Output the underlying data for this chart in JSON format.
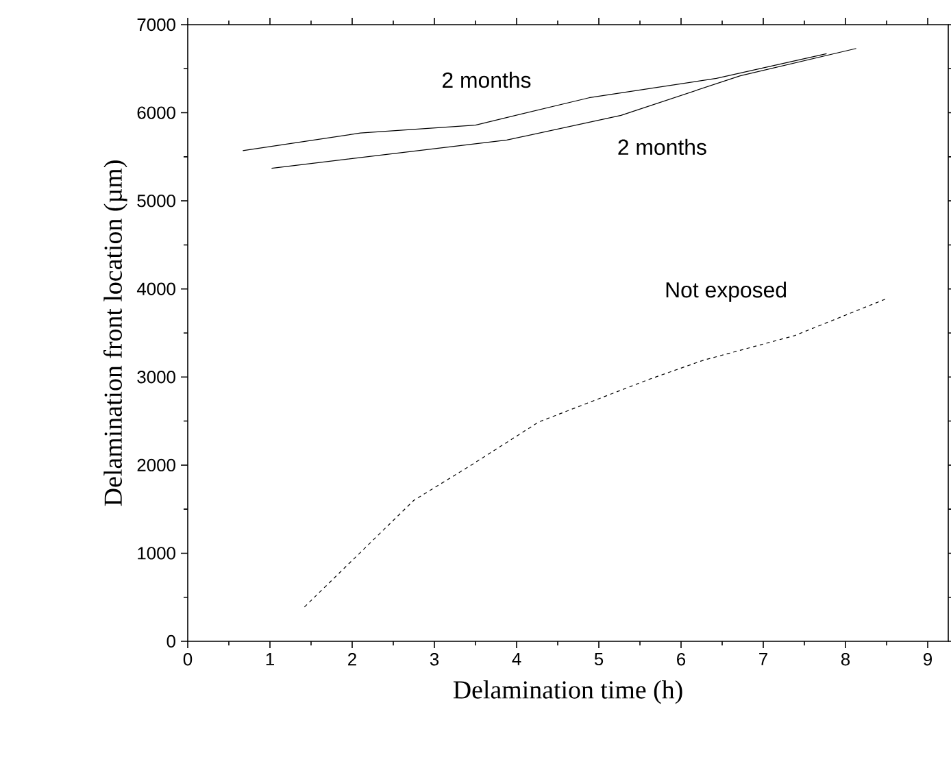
{
  "chart_data": {
    "type": "line",
    "xlabel": "Delamination time (h)",
    "ylabel": "Delamination front location (µm)",
    "xlim": [
      0,
      9.25
    ],
    "ylim": [
      0,
      7000
    ],
    "xticks": [
      0,
      1,
      2,
      3,
      4,
      5,
      6,
      7,
      8,
      9
    ],
    "yticks": [
      0,
      1000,
      2000,
      3000,
      4000,
      5000,
      6000,
      7000
    ],
    "grid": false,
    "marker": "none",
    "series": [
      {
        "name": "2 months",
        "color": "#000000",
        "line_style": "solid",
        "x": [
          0.67,
          2.1,
          3.5,
          4.88,
          6.43,
          7.77
        ],
        "values": [
          5570,
          5770,
          5860,
          6170,
          6390,
          6670
        ]
      },
      {
        "name": "2 months",
        "color": "#000000",
        "line_style": "solid",
        "x": [
          1.02,
          3.88,
          5.27,
          6.72,
          8.13
        ],
        "values": [
          5370,
          5690,
          5970,
          6420,
          6730
        ]
      },
      {
        "name": "Not exposed",
        "color": "#000000",
        "line_style": "dashed",
        "x": [
          1.42,
          2.75,
          3.43,
          4.27,
          5.6,
          6.27,
          7.38,
          8.5
        ],
        "values": [
          390,
          1600,
          1990,
          2490,
          2970,
          3190,
          3470,
          3890
        ]
      }
    ]
  }
}
